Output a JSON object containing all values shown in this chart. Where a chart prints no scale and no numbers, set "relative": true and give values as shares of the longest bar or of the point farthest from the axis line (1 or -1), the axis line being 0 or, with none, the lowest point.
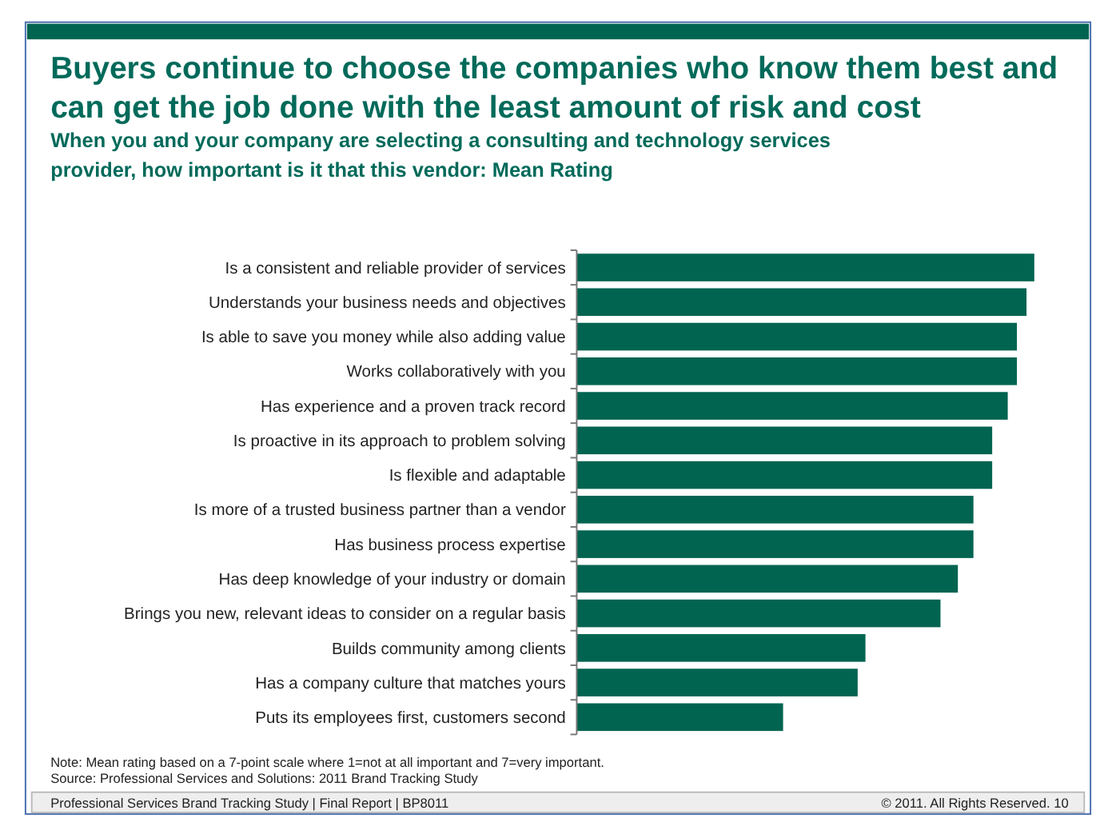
{
  "chart_data": {
    "type": "bar",
    "orientation": "horizontal",
    "relative": true,
    "title": "Buyers continue to choose the companies who know them best and can get the job done with the least amount of risk and cost",
    "subtitle": "When you and your company are selecting a consulting and technology services provider, how important is it that this vendor: Mean Rating",
    "categories": [
      "Is a consistent and reliable provider of services",
      "Understands your business needs and objectives",
      "Is able to save you money while also adding value",
      "Works collaboratively with you",
      "Has experience and a proven track record",
      "Is proactive in its approach to problem solving",
      "Is flexible and adaptable",
      "Is more of a trusted business partner than a vendor",
      "Has business process expertise",
      "Has deep knowledge of your industry or domain",
      "Brings you new, relevant ideas to consider on a regular basis",
      "Builds community among clients",
      "Has a company culture that matches yours",
      "Puts its employees first, customers second"
    ],
    "values": [
      1,
      0.983,
      0.962,
      0.962,
      0.942,
      0.908,
      0.908,
      0.867,
      0.867,
      0.833,
      0.795,
      0.631,
      0.614,
      0.451
    ],
    "color": "#006450",
    "annotations": [
      "Note: Mean rating based on a 7-point scale where 1=not at all important and 7=very important.",
      "Source: Professional Services and Solutions: 2011 Brand Tracking Study",
      "Professional Services Brand Tracking Study | Final Report | BP8011",
      "© 2011. All Rights Reserved. 10"
    ]
  }
}
